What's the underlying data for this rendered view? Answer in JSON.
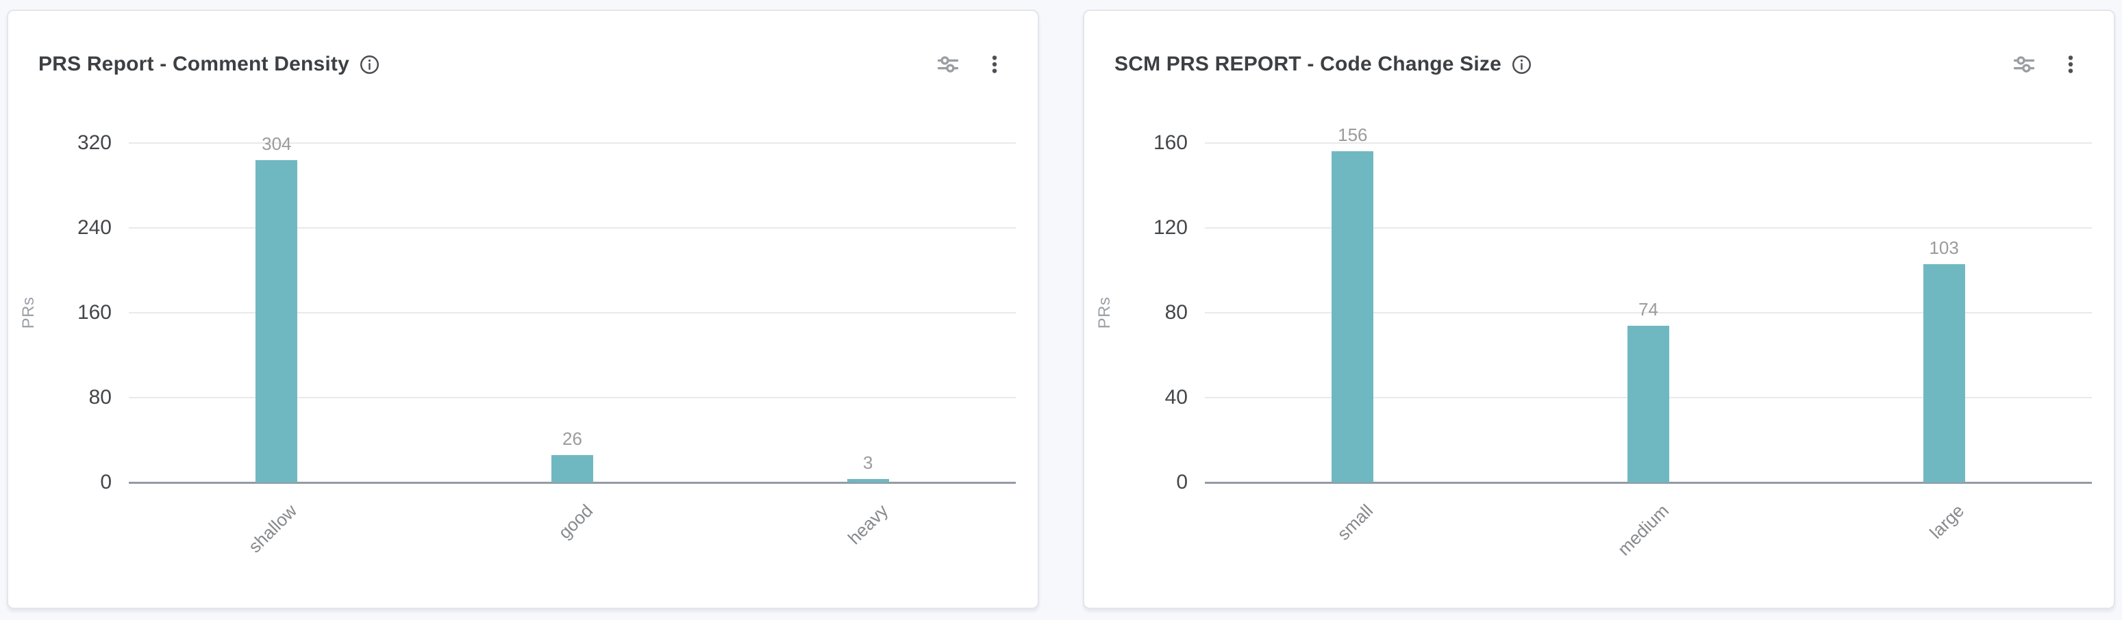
{
  "page": {
    "background": "#f7f8fc",
    "card_background": "#ffffff"
  },
  "cards": [
    {
      "title": "PRS Report - Comment Density",
      "icons": [
        "info-icon",
        "filter-sliders-icon",
        "kebab-menu-icon"
      ]
    },
    {
      "title": "SCM PRS REPORT - Code Change Size",
      "icons": [
        "info-icon",
        "filter-sliders-icon",
        "kebab-menu-icon"
      ]
    }
  ],
  "chart_data": [
    {
      "type": "bar",
      "title": "PRS Report - Comment Density",
      "categories": [
        "shallow",
        "good",
        "heavy"
      ],
      "values": [
        304,
        26,
        3
      ],
      "xlabel": "",
      "ylabel": "PRs",
      "ylim": [
        0,
        320
      ],
      "yticks": [
        0,
        80,
        160,
        240,
        320
      ],
      "grid": true,
      "legend": "none",
      "bar_color": "#70b8c1",
      "value_label_color": "#9b9b9b"
    },
    {
      "type": "bar",
      "title": "SCM PRS REPORT - Code Change Size",
      "categories": [
        "small",
        "medium",
        "large"
      ],
      "values": [
        156,
        74,
        103
      ],
      "xlabel": "",
      "ylabel": "PRs",
      "ylim": [
        0,
        160
      ],
      "yticks": [
        0,
        40,
        80,
        120,
        160
      ],
      "grid": true,
      "legend": "none",
      "bar_color": "#70b8c1",
      "value_label_color": "#9b9b9b"
    }
  ]
}
